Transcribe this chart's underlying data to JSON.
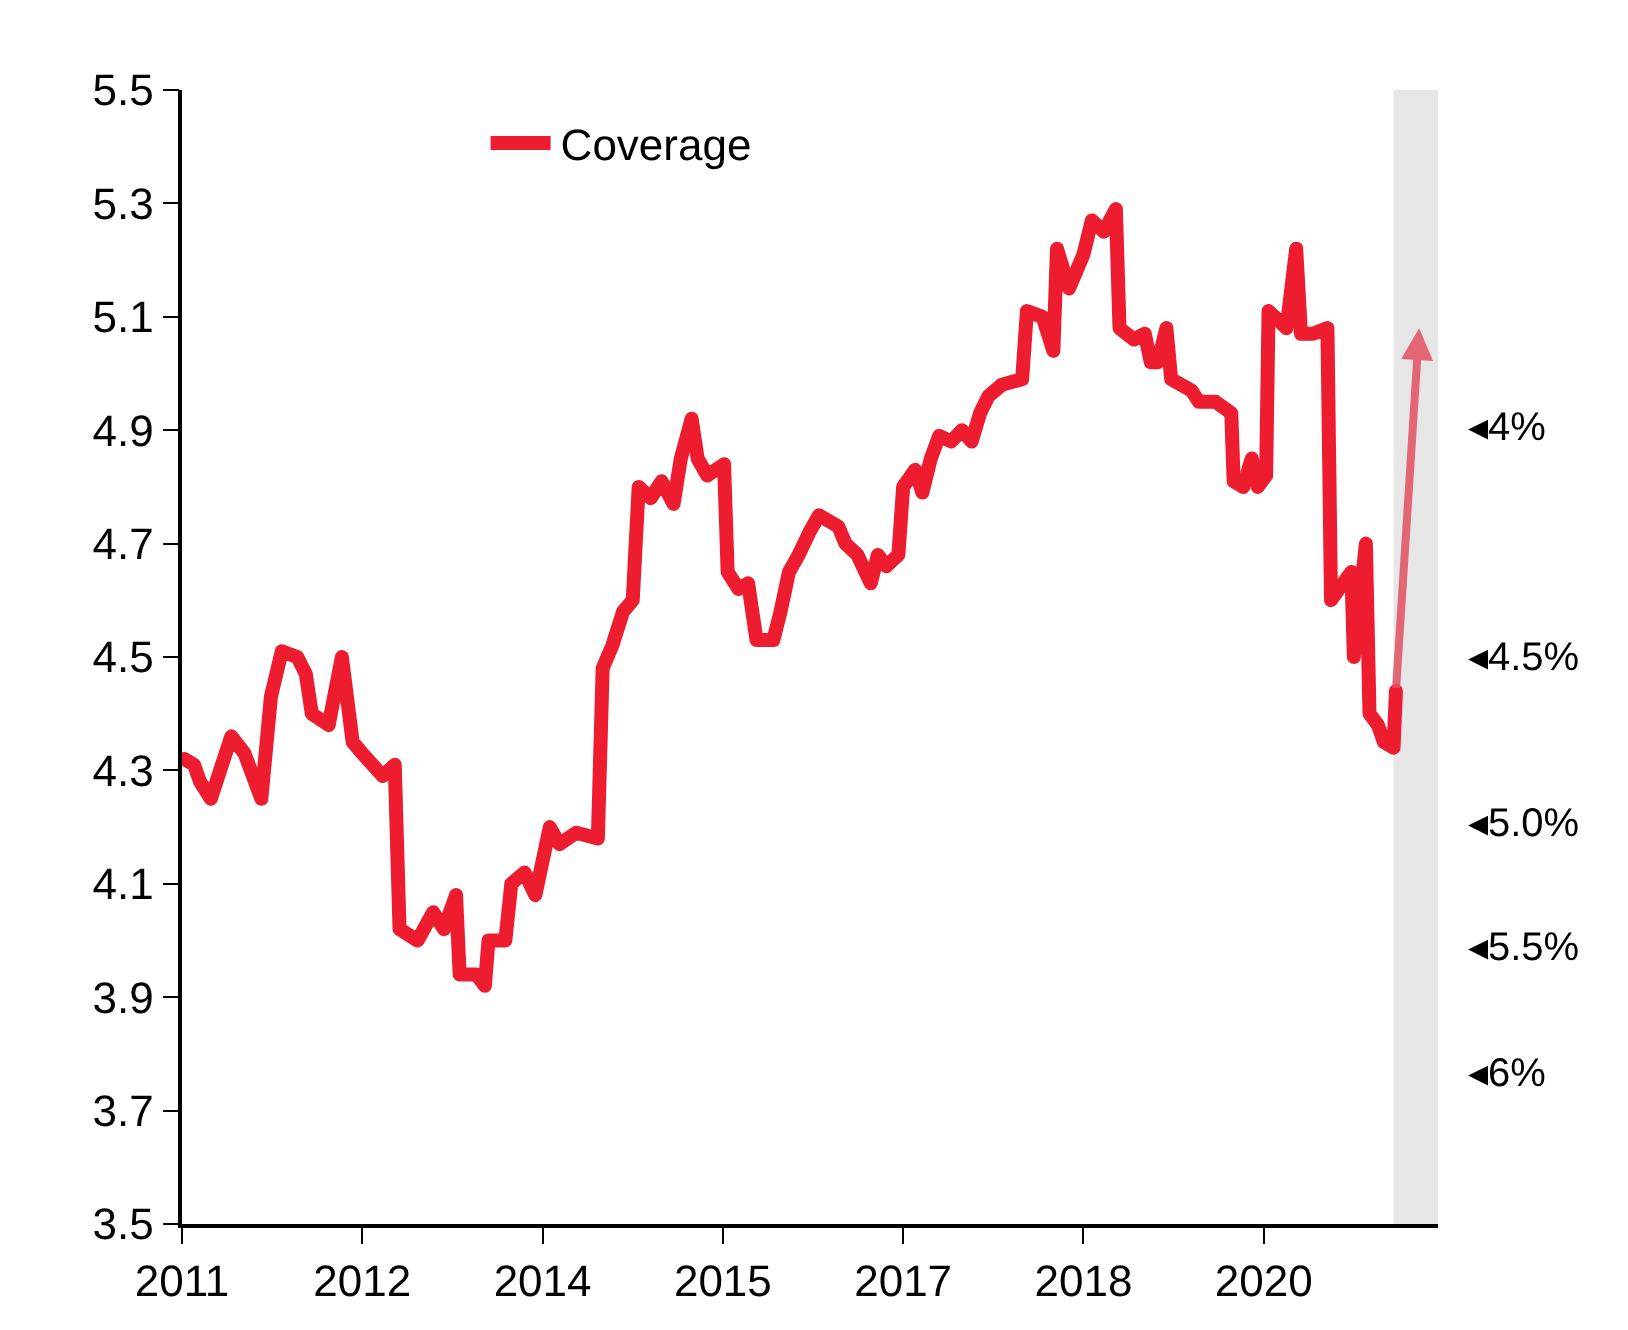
{
  "chart_data": {
    "type": "line",
    "x": [
      2011.02,
      2011.1,
      2011.15,
      2011.24,
      2011.41,
      2011.52,
      2011.66,
      2011.74,
      2011.83,
      2011.96,
      2012.03,
      2012.08,
      2012.22,
      2012.33,
      2012.42,
      2012.5,
      2012.67,
      2012.77,
      2012.81,
      2012.96,
      2013.09,
      2013.18,
      2013.28,
      2013.31,
      2013.45,
      2013.52,
      2013.55,
      2013.69,
      2013.74,
      2013.85,
      2013.94,
      2014.06,
      2014.14,
      2014.28,
      2014.46,
      2014.5,
      2014.58,
      2014.67,
      2014.75,
      2014.8,
      2014.9,
      2014.99,
      2015.09,
      2015.15,
      2015.24,
      2015.29,
      2015.37,
      2015.51,
      2015.54,
      2015.63,
      2015.71,
      2015.78,
      2015.92,
      2015.98,
      2016.05,
      2016.13,
      2016.22,
      2016.3,
      2016.46,
      2016.52,
      2016.62,
      2016.73,
      2016.79,
      2016.86,
      2016.96,
      2017.0,
      2017.1,
      2017.16,
      2017.23,
      2017.3,
      2017.4,
      2017.49,
      2017.57,
      2017.64,
      2017.71,
      2017.82,
      2017.99,
      2018.03,
      2018.16,
      2018.25,
      2018.28,
      2018.38,
      2018.5,
      2018.57,
      2018.67,
      2018.77,
      2018.8,
      2018.92,
      2019.01,
      2019.06,
      2019.12,
      2019.19,
      2019.23,
      2019.4,
      2019.46,
      2019.6,
      2019.73,
      2019.75,
      2019.83,
      2019.9,
      2019.95,
      2020.02,
      2020.04,
      2020.19,
      2020.27,
      2020.31,
      2020.41,
      2020.53,
      2020.56,
      2020.66,
      2020.73,
      2020.75,
      2020.85,
      2020.88,
      2020.95,
      2021.0,
      2021.08,
      2021.1
    ],
    "series": [
      {
        "name": "Coverage",
        "color": "#ed1c2e",
        "values": [
          4.32,
          4.31,
          4.28,
          4.25,
          4.36,
          4.33,
          4.25,
          4.43,
          4.51,
          4.5,
          4.47,
          4.4,
          4.38,
          4.5,
          4.35,
          4.33,
          4.29,
          4.31,
          4.02,
          4.0,
          4.05,
          4.02,
          4.08,
          3.94,
          3.94,
          3.92,
          4.0,
          4.0,
          4.1,
          4.12,
          4.08,
          4.2,
          4.17,
          4.19,
          4.18,
          4.48,
          4.52,
          4.58,
          4.6,
          4.8,
          4.78,
          4.81,
          4.77,
          4.85,
          4.92,
          4.85,
          4.82,
          4.84,
          4.65,
          4.62,
          4.63,
          4.53,
          4.53,
          4.58,
          4.65,
          4.68,
          4.72,
          4.75,
          4.73,
          4.7,
          4.68,
          4.63,
          4.68,
          4.66,
          4.68,
          4.8,
          4.83,
          4.79,
          4.85,
          4.89,
          4.88,
          4.9,
          4.88,
          4.93,
          4.96,
          4.98,
          4.99,
          5.11,
          5.1,
          5.04,
          5.22,
          5.15,
          5.21,
          5.27,
          5.25,
          5.29,
          5.08,
          5.06,
          5.07,
          5.02,
          5.02,
          5.08,
          4.99,
          4.97,
          4.95,
          4.95,
          4.93,
          4.81,
          4.8,
          4.85,
          4.8,
          4.82,
          5.11,
          5.08,
          5.22,
          5.07,
          5.07,
          5.08,
          4.6,
          4.63,
          4.65,
          4.5,
          4.7,
          4.4,
          4.38,
          4.35,
          4.34,
          4.44
        ]
      }
    ],
    "xlim": [
      2011,
      2021.45
    ],
    "xticks": [
      {
        "value": 2011,
        "label": "2011"
      },
      {
        "value": 2012.5,
        "label": "2012"
      },
      {
        "value": 2014,
        "label": "2014"
      },
      {
        "value": 2015.5,
        "label": "2015"
      },
      {
        "value": 2017,
        "label": "2017"
      },
      {
        "value": 2018.5,
        "label": "2018"
      },
      {
        "value": 2020,
        "label": "2020"
      }
    ],
    "ylim": [
      3.5,
      5.5
    ],
    "yticks": [
      3.5,
      3.7,
      3.9,
      4.1,
      4.3,
      4.5,
      4.7,
      4.9,
      5.1,
      5.3,
      5.5
    ],
    "bands": [
      {
        "axis": "x",
        "from": 2021.08,
        "to": 2021.45,
        "color": "#e6e6e6"
      }
    ],
    "annotations": [
      "◂4%",
      "◂4.5%",
      "◂5.0%",
      "◂5.5%",
      "◂6%"
    ],
    "legend": "top",
    "grid": false,
    "marker": "none",
    "line_style": "solid"
  }
}
